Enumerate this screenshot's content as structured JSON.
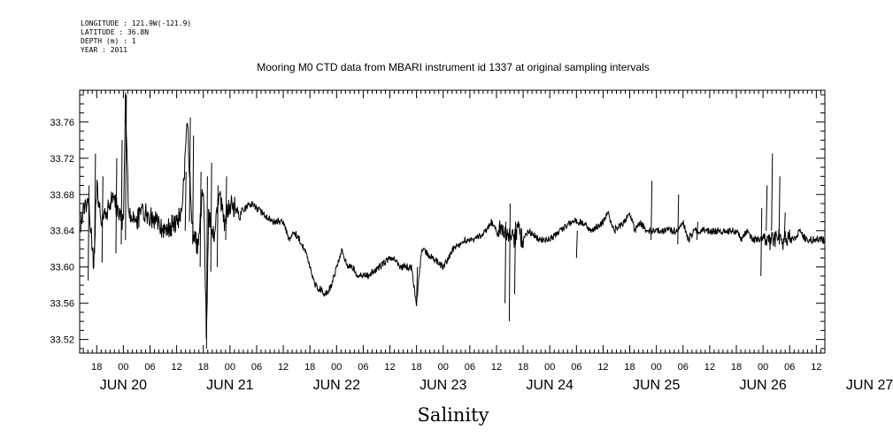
{
  "header": {
    "longitude": "LONGITUDE : 121.9W(-121.9)",
    "latitude": "LATITUDE : 36.8N",
    "depth": "DEPTH (m) : 1",
    "year": "YEAR : 2011"
  },
  "chart_data": {
    "type": "line",
    "title": "Mooring M0 CTD data from MBARI instrument id 1337 at original sampling intervals",
    "xlabel": "Salinity",
    "ylabel": "",
    "x_units": "days since JUN 20 00:00 (2011)",
    "xlim": [
      -0.41,
      6.58
    ],
    "ylim": [
      33.505,
      33.795
    ],
    "y_ticks": [
      "33.52",
      "33.56",
      "33.60",
      "33.64",
      "33.68",
      "33.72",
      "33.76"
    ],
    "x_hour_ticks": [
      {
        "x": -0.25,
        "label": "18"
      },
      {
        "x": 0,
        "label": "00"
      },
      {
        "x": 0.25,
        "label": "06"
      },
      {
        "x": 0.5,
        "label": "12"
      },
      {
        "x": 0.75,
        "label": "18"
      },
      {
        "x": 1,
        "label": "00"
      },
      {
        "x": 1.25,
        "label": "06"
      },
      {
        "x": 1.5,
        "label": "12"
      },
      {
        "x": 1.75,
        "label": "18"
      },
      {
        "x": 2,
        "label": "00"
      },
      {
        "x": 2.25,
        "label": "06"
      },
      {
        "x": 2.5,
        "label": "12"
      },
      {
        "x": 2.75,
        "label": "18"
      },
      {
        "x": 3,
        "label": "00"
      },
      {
        "x": 3.25,
        "label": "06"
      },
      {
        "x": 3.5,
        "label": "12"
      },
      {
        "x": 3.75,
        "label": "18"
      },
      {
        "x": 4,
        "label": "00"
      },
      {
        "x": 4.25,
        "label": "06"
      },
      {
        "x": 4.5,
        "label": "12"
      },
      {
        "x": 4.75,
        "label": "18"
      },
      {
        "x": 5,
        "label": "00"
      },
      {
        "x": 5.25,
        "label": "06"
      },
      {
        "x": 5.5,
        "label": "12"
      },
      {
        "x": 5.75,
        "label": "18"
      },
      {
        "x": 6,
        "label": "00"
      },
      {
        "x": 6.25,
        "label": "06"
      },
      {
        "x": 6.5,
        "label": "12"
      }
    ],
    "x_day_labels": [
      {
        "x": 0,
        "label": "JUN 20"
      },
      {
        "x": 1,
        "label": "JUN 21"
      },
      {
        "x": 2,
        "label": "JUN 22"
      },
      {
        "x": 3,
        "label": "JUN 23"
      },
      {
        "x": 4,
        "label": "JUN 24"
      },
      {
        "x": 5,
        "label": "JUN 25"
      },
      {
        "x": 6,
        "label": "JUN 26"
      },
      {
        "x": 7,
        "label": "JUN 27"
      }
    ],
    "series": [
      {
        "color": "#000000",
        "x": [
          -0.4,
          -0.33,
          -0.28,
          -0.25,
          -0.2,
          -0.15,
          -0.1,
          -0.05,
          0,
          0.02,
          0.05,
          0.1,
          0.2,
          0.3,
          0.4,
          0.5,
          0.55,
          0.6,
          0.62,
          0.65,
          0.7,
          0.75,
          0.78,
          0.8,
          0.85,
          0.9,
          0.95,
          1.0,
          1.1,
          1.2,
          1.3,
          1.4,
          1.5,
          1.55,
          1.6,
          1.7,
          1.8,
          1.9,
          1.95,
          2.0,
          2.05,
          2.1,
          2.15,
          2.2,
          2.3,
          2.4,
          2.5,
          2.55,
          2.6,
          2.7,
          2.75,
          2.8,
          2.9,
          3.0,
          3.1,
          3.2,
          3.3,
          3.4,
          3.45,
          3.5,
          3.6,
          3.65,
          3.7,
          3.75,
          3.8,
          3.9,
          4.0,
          4.1,
          4.2,
          4.3,
          4.4,
          4.5,
          4.55,
          4.6,
          4.7,
          4.75,
          4.8,
          4.85,
          4.9,
          5.0,
          5.1,
          5.2,
          5.25,
          5.3,
          5.35,
          5.4,
          5.5,
          5.6,
          5.7,
          5.75,
          5.8,
          5.85,
          5.9,
          6.0,
          6.1,
          6.2,
          6.3,
          6.35,
          6.4,
          6.5,
          6.58
        ],
        "y": [
          33.65,
          33.68,
          33.6,
          33.69,
          33.65,
          33.66,
          33.68,
          33.66,
          33.65,
          33.79,
          33.66,
          33.65,
          33.66,
          33.65,
          33.64,
          33.65,
          33.66,
          33.76,
          33.71,
          33.64,
          33.62,
          33.69,
          33.52,
          33.66,
          33.63,
          33.68,
          33.65,
          33.67,
          33.66,
          33.67,
          33.66,
          33.65,
          33.65,
          33.63,
          33.64,
          33.62,
          33.58,
          33.57,
          33.58,
          33.6,
          33.62,
          33.6,
          33.6,
          33.59,
          33.59,
          33.6,
          33.61,
          33.61,
          33.6,
          33.6,
          33.56,
          33.62,
          33.61,
          33.6,
          33.62,
          33.63,
          33.63,
          33.64,
          33.65,
          33.64,
          33.64,
          33.63,
          33.64,
          33.63,
          33.64,
          33.63,
          33.63,
          33.64,
          33.65,
          33.65,
          33.64,
          33.65,
          33.66,
          33.64,
          33.65,
          33.66,
          33.64,
          33.65,
          33.64,
          33.64,
          33.64,
          33.64,
          33.65,
          33.63,
          33.64,
          33.64,
          33.64,
          33.64,
          33.64,
          33.64,
          33.63,
          33.64,
          33.63,
          33.63,
          33.63,
          33.63,
          33.63,
          33.64,
          33.63,
          33.63,
          33.63
        ]
      }
    ],
    "spikes": [
      {
        "x": -0.33,
        "lo": 33.585,
        "hi": 33.69
      },
      {
        "x": -0.27,
        "lo": 33.615,
        "hi": 33.725
      },
      {
        "x": -0.2,
        "lo": 33.605,
        "hi": 33.7
      },
      {
        "x": -0.07,
        "lo": 33.615,
        "hi": 33.72
      },
      {
        "x": -0.02,
        "lo": 33.625,
        "hi": 33.74
      },
      {
        "x": 0.02,
        "lo": 33.63,
        "hi": 33.79
      },
      {
        "x": 0.58,
        "lo": 33.64,
        "hi": 33.705
      },
      {
        "x": 0.62,
        "lo": 33.65,
        "hi": 33.765
      },
      {
        "x": 0.65,
        "lo": 33.625,
        "hi": 33.745
      },
      {
        "x": 0.72,
        "lo": 33.6,
        "hi": 33.705
      },
      {
        "x": 0.78,
        "lo": 33.51,
        "hi": 33.7
      },
      {
        "x": 0.82,
        "lo": 33.595,
        "hi": 33.715
      },
      {
        "x": 0.88,
        "lo": 33.6,
        "hi": 33.69
      },
      {
        "x": 0.96,
        "lo": 33.63,
        "hi": 33.7
      },
      {
        "x": 2.75,
        "lo": 33.56,
        "hi": 33.6
      },
      {
        "x": 3.58,
        "lo": 33.56,
        "hi": 33.65
      },
      {
        "x": 3.62,
        "lo": 33.54,
        "hi": 33.67
      },
      {
        "x": 3.67,
        "lo": 33.57,
        "hi": 33.65
      },
      {
        "x": 4.25,
        "lo": 33.61,
        "hi": 33.64
      },
      {
        "x": 4.95,
        "lo": 33.63,
        "hi": 33.695
      },
      {
        "x": 5.2,
        "lo": 33.625,
        "hi": 33.68
      },
      {
        "x": 5.38,
        "lo": 33.63,
        "hi": 33.65
      },
      {
        "x": 5.98,
        "lo": 33.59,
        "hi": 33.665
      },
      {
        "x": 6.03,
        "lo": 33.64,
        "hi": 33.69
      },
      {
        "x": 6.08,
        "lo": 33.64,
        "hi": 33.725
      },
      {
        "x": 6.15,
        "lo": 33.63,
        "hi": 33.7
      },
      {
        "x": 6.2,
        "lo": 33.63,
        "hi": 33.66
      }
    ],
    "grid": false,
    "legend": "none"
  }
}
